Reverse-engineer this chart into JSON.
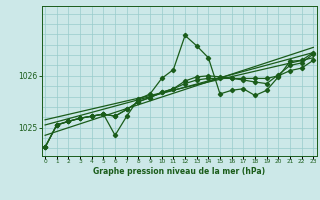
{
  "title": "Graphe pression niveau de la mer (hPa)",
  "background_color": "#cce8e8",
  "grid_color": "#99cccc",
  "line_color": "#1a5c1a",
  "x_labels": [
    "0",
    "1",
    "2",
    "3",
    "4",
    "5",
    "6",
    "7",
    "8",
    "9",
    "10",
    "11",
    "12",
    "13",
    "14",
    "15",
    "16",
    "17",
    "18",
    "19",
    "20",
    "21",
    "22",
    "23"
  ],
  "y_ticks": [
    1025,
    1026
  ],
  "ylim": [
    1024.45,
    1027.35
  ],
  "xlim": [
    -0.3,
    23.3
  ],
  "series_zigzag": [
    1024.62,
    1025.05,
    1025.12,
    1025.18,
    1025.22,
    1025.26,
    1024.85,
    1025.22,
    1025.55,
    1025.65,
    1025.95,
    1026.12,
    1026.78,
    1026.58,
    1026.35,
    1025.65,
    1025.72,
    1025.75,
    1025.62,
    1025.72,
    1025.98,
    1026.28,
    1026.3,
    1026.45
  ],
  "series_flat1": [
    1024.62,
    1025.05,
    1025.12,
    1025.18,
    1025.22,
    1025.26,
    1025.22,
    1025.35,
    1025.5,
    1025.58,
    1025.68,
    1025.75,
    1025.85,
    1025.92,
    1025.95,
    1025.95,
    1025.95,
    1025.95,
    1025.95,
    1025.95,
    1026.0,
    1026.1,
    1026.15,
    1026.3
  ],
  "series_flat2": [
    1024.62,
    1025.05,
    1025.12,
    1025.18,
    1025.22,
    1025.26,
    1025.22,
    1025.35,
    1025.5,
    1025.58,
    1025.68,
    1025.75,
    1025.9,
    1025.98,
    1026.0,
    1025.98,
    1025.95,
    1025.92,
    1025.88,
    1025.85,
    1026.02,
    1026.2,
    1026.25,
    1026.42
  ],
  "trend1_x": [
    0,
    23
  ],
  "trend1_y": [
    1024.85,
    1026.55
  ],
  "trend2_x": [
    0,
    23
  ],
  "trend2_y": [
    1025.05,
    1026.45
  ],
  "trend3_x": [
    0,
    23
  ],
  "trend3_y": [
    1025.15,
    1026.35
  ]
}
